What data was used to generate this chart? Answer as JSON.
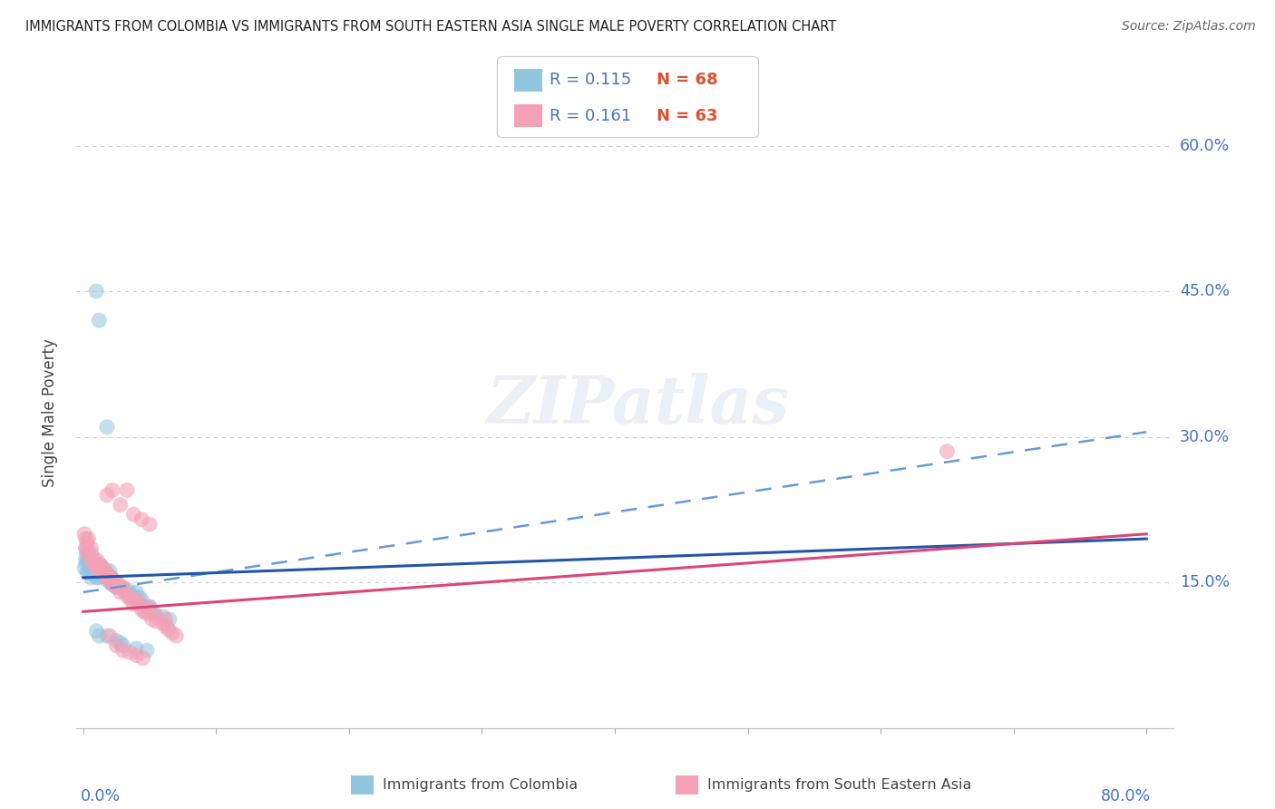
{
  "title": "IMMIGRANTS FROM COLOMBIA VS IMMIGRANTS FROM SOUTH EASTERN ASIA SINGLE MALE POVERTY CORRELATION CHART",
  "source": "Source: ZipAtlas.com",
  "ylabel": "Single Male Poverty",
  "ytick_values": [
    0.15,
    0.3,
    0.45,
    0.6
  ],
  "ytick_labels": [
    "15.0%",
    "30.0%",
    "45.0%",
    "60.0%"
  ],
  "xlim": [
    0.0,
    0.8
  ],
  "ylim": [
    0.0,
    0.65
  ],
  "colombia_color": "#92c5de",
  "sea_color": "#f4a0b5",
  "colombia_trend_x": [
    0.0,
    0.8
  ],
  "colombia_trend_y": [
    0.155,
    0.195
  ],
  "sea_trend_x": [
    0.0,
    0.8
  ],
  "sea_trend_y": [
    0.12,
    0.2
  ],
  "background_color": "#ffffff",
  "grid_color": "#d0d0d0",
  "title_color": "#222222",
  "right_label_color": "#4472c4",
  "r_color": "#4472c4",
  "n_color": "#e05030",
  "colombia_x": [
    0.001,
    0.002,
    0.002,
    0.002,
    0.003,
    0.003,
    0.003,
    0.004,
    0.004,
    0.005,
    0.005,
    0.006,
    0.006,
    0.007,
    0.007,
    0.008,
    0.008,
    0.009,
    0.009,
    0.01,
    0.01,
    0.01,
    0.011,
    0.011,
    0.012,
    0.012,
    0.013,
    0.013,
    0.014,
    0.015,
    0.015,
    0.016,
    0.016,
    0.017,
    0.018,
    0.018,
    0.019,
    0.02,
    0.02,
    0.021,
    0.022,
    0.023,
    0.024,
    0.025,
    0.026,
    0.028,
    0.03,
    0.032,
    0.034,
    0.036,
    0.038,
    0.04,
    0.042,
    0.044,
    0.048,
    0.05,
    0.052,
    0.054,
    0.06,
    0.065,
    0.01,
    0.012,
    0.018,
    0.025,
    0.028,
    0.03,
    0.04,
    0.048
  ],
  "colombia_y": [
    0.165,
    0.17,
    0.175,
    0.185,
    0.16,
    0.172,
    0.18,
    0.168,
    0.175,
    0.16,
    0.172,
    0.155,
    0.18,
    0.162,
    0.17,
    0.158,
    0.168,
    0.16,
    0.165,
    0.155,
    0.16,
    0.45,
    0.158,
    0.165,
    0.155,
    0.42,
    0.162,
    0.168,
    0.158,
    0.16,
    0.165,
    0.155,
    0.162,
    0.158,
    0.155,
    0.31,
    0.155,
    0.15,
    0.162,
    0.155,
    0.148,
    0.152,
    0.148,
    0.145,
    0.15,
    0.145,
    0.145,
    0.14,
    0.142,
    0.138,
    0.135,
    0.14,
    0.135,
    0.132,
    0.125,
    0.125,
    0.12,
    0.118,
    0.115,
    0.112,
    0.1,
    0.095,
    0.095,
    0.09,
    0.088,
    0.085,
    0.082,
    0.08
  ],
  "sea_x": [
    0.001,
    0.002,
    0.002,
    0.003,
    0.003,
    0.004,
    0.005,
    0.006,
    0.007,
    0.008,
    0.009,
    0.01,
    0.011,
    0.012,
    0.013,
    0.014,
    0.015,
    0.016,
    0.017,
    0.018,
    0.019,
    0.02,
    0.021,
    0.022,
    0.023,
    0.024,
    0.025,
    0.026,
    0.028,
    0.03,
    0.032,
    0.034,
    0.036,
    0.038,
    0.04,
    0.042,
    0.044,
    0.046,
    0.048,
    0.05,
    0.052,
    0.055,
    0.06,
    0.062,
    0.064,
    0.067,
    0.07,
    0.02,
    0.025,
    0.03,
    0.035,
    0.04,
    0.045,
    0.018,
    0.022,
    0.028,
    0.033,
    0.038,
    0.044,
    0.05,
    0.055,
    0.062,
    0.65
  ],
  "sea_y": [
    0.2,
    0.195,
    0.185,
    0.19,
    0.18,
    0.195,
    0.175,
    0.185,
    0.17,
    0.175,
    0.168,
    0.165,
    0.172,
    0.162,
    0.168,
    0.165,
    0.16,
    0.158,
    0.162,
    0.155,
    0.158,
    0.152,
    0.155,
    0.148,
    0.152,
    0.148,
    0.145,
    0.148,
    0.14,
    0.145,
    0.138,
    0.135,
    0.132,
    0.128,
    0.132,
    0.128,
    0.122,
    0.12,
    0.118,
    0.125,
    0.112,
    0.11,
    0.108,
    0.105,
    0.102,
    0.098,
    0.095,
    0.095,
    0.085,
    0.08,
    0.078,
    0.075,
    0.072,
    0.24,
    0.245,
    0.23,
    0.245,
    0.22,
    0.215,
    0.21,
    0.115,
    0.112,
    0.285
  ]
}
